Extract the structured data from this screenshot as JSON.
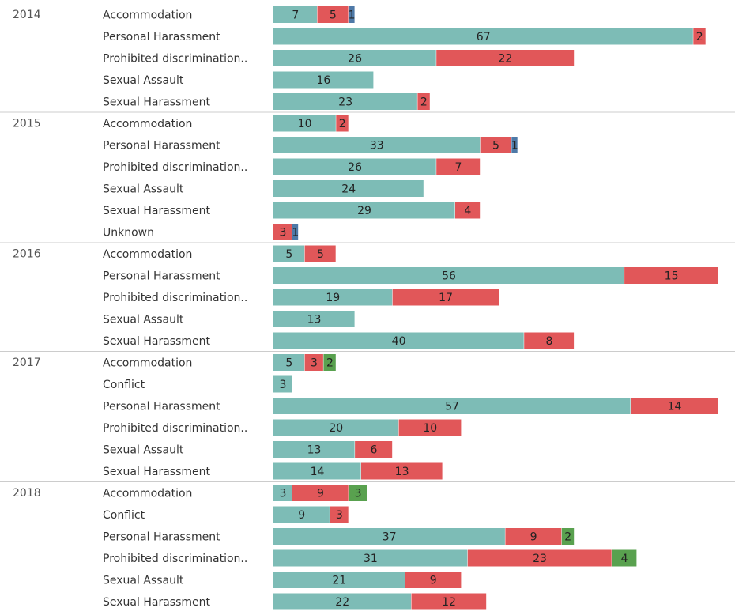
{
  "colors": {
    "teal": "#7dbcb6",
    "red": "#e15759",
    "blue": "#4e79a7",
    "green": "#59a14f",
    "divider": "#cccccc",
    "axis": "#bbbbbb"
  },
  "chart_data": {
    "type": "bar",
    "orientation": "horizontal",
    "stacked": true,
    "grid": false,
    "legend": "none",
    "xlim": [
      0,
      73
    ],
    "series_colors": [
      "teal",
      "red",
      "blue",
      "green"
    ],
    "groups": [
      {
        "year": "2014",
        "rows": [
          {
            "category": "Accommodation",
            "segments": [
              {
                "value": 7,
                "color": "teal"
              },
              {
                "value": 5,
                "color": "red"
              },
              {
                "value": 1,
                "color": "blue"
              }
            ]
          },
          {
            "category": "Personal Harassment",
            "segments": [
              {
                "value": 67,
                "color": "teal"
              },
              {
                "value": 2,
                "color": "red"
              }
            ]
          },
          {
            "category": "Prohibited discrimination..",
            "segments": [
              {
                "value": 26,
                "color": "teal"
              },
              {
                "value": 22,
                "color": "red"
              }
            ]
          },
          {
            "category": "Sexual Assault",
            "segments": [
              {
                "value": 16,
                "color": "teal"
              }
            ]
          },
          {
            "category": "Sexual Harassment",
            "segments": [
              {
                "value": 23,
                "color": "teal"
              },
              {
                "value": 2,
                "color": "red"
              }
            ]
          }
        ]
      },
      {
        "year": "2015",
        "rows": [
          {
            "category": "Accommodation",
            "segments": [
              {
                "value": 10,
                "color": "teal"
              },
              {
                "value": 2,
                "color": "red"
              }
            ]
          },
          {
            "category": "Personal Harassment",
            "segments": [
              {
                "value": 33,
                "color": "teal"
              },
              {
                "value": 5,
                "color": "red"
              },
              {
                "value": 1,
                "color": "blue"
              }
            ]
          },
          {
            "category": "Prohibited discrimination..",
            "segments": [
              {
                "value": 26,
                "color": "teal"
              },
              {
                "value": 7,
                "color": "red"
              }
            ]
          },
          {
            "category": "Sexual Assault",
            "segments": [
              {
                "value": 24,
                "color": "teal"
              }
            ]
          },
          {
            "category": "Sexual Harassment",
            "segments": [
              {
                "value": 29,
                "color": "teal"
              },
              {
                "value": 4,
                "color": "red"
              }
            ]
          },
          {
            "category": "Unknown",
            "segments": [
              {
                "value": 3,
                "color": "red"
              },
              {
                "value": 1,
                "color": "blue"
              }
            ]
          }
        ]
      },
      {
        "year": "2016",
        "rows": [
          {
            "category": "Accommodation",
            "segments": [
              {
                "value": 5,
                "color": "teal"
              },
              {
                "value": 5,
                "color": "red"
              }
            ]
          },
          {
            "category": "Personal Harassment",
            "segments": [
              {
                "value": 56,
                "color": "teal"
              },
              {
                "value": 15,
                "color": "red"
              }
            ]
          },
          {
            "category": "Prohibited discrimination..",
            "segments": [
              {
                "value": 19,
                "color": "teal"
              },
              {
                "value": 17,
                "color": "red"
              }
            ]
          },
          {
            "category": "Sexual Assault",
            "segments": [
              {
                "value": 13,
                "color": "teal"
              }
            ]
          },
          {
            "category": "Sexual Harassment",
            "segments": [
              {
                "value": 40,
                "color": "teal"
              },
              {
                "value": 8,
                "color": "red"
              }
            ]
          }
        ]
      },
      {
        "year": "2017",
        "rows": [
          {
            "category": "Accommodation",
            "segments": [
              {
                "value": 5,
                "color": "teal"
              },
              {
                "value": 3,
                "color": "red"
              },
              {
                "value": 2,
                "color": "green"
              }
            ]
          },
          {
            "category": "Conflict",
            "segments": [
              {
                "value": 3,
                "color": "teal"
              }
            ]
          },
          {
            "category": "Personal Harassment",
            "segments": [
              {
                "value": 57,
                "color": "teal"
              },
              {
                "value": 14,
                "color": "red"
              }
            ]
          },
          {
            "category": "Prohibited discrimination..",
            "segments": [
              {
                "value": 20,
                "color": "teal"
              },
              {
                "value": 10,
                "color": "red"
              }
            ]
          },
          {
            "category": "Sexual Assault",
            "segments": [
              {
                "value": 13,
                "color": "teal"
              },
              {
                "value": 6,
                "color": "red"
              }
            ]
          },
          {
            "category": "Sexual Harassment",
            "segments": [
              {
                "value": 14,
                "color": "teal"
              },
              {
                "value": 13,
                "color": "red"
              }
            ]
          }
        ]
      },
      {
        "year": "2018",
        "rows": [
          {
            "category": "Accommodation",
            "segments": [
              {
                "value": 3,
                "color": "teal"
              },
              {
                "value": 9,
                "color": "red"
              },
              {
                "value": 3,
                "color": "green"
              }
            ]
          },
          {
            "category": "Conflict",
            "segments": [
              {
                "value": 9,
                "color": "teal"
              },
              {
                "value": 3,
                "color": "red"
              }
            ]
          },
          {
            "category": "Personal Harassment",
            "segments": [
              {
                "value": 37,
                "color": "teal"
              },
              {
                "value": 9,
                "color": "red"
              },
              {
                "value": 2,
                "color": "green"
              }
            ]
          },
          {
            "category": "Prohibited discrimination..",
            "segments": [
              {
                "value": 31,
                "color": "teal"
              },
              {
                "value": 23,
                "color": "red"
              },
              {
                "value": 4,
                "color": "green"
              }
            ]
          },
          {
            "category": "Sexual Assault",
            "segments": [
              {
                "value": 21,
                "color": "teal"
              },
              {
                "value": 9,
                "color": "red"
              }
            ]
          },
          {
            "category": "Sexual Harassment",
            "segments": [
              {
                "value": 22,
                "color": "teal"
              },
              {
                "value": 12,
                "color": "red"
              }
            ]
          }
        ]
      }
    ]
  }
}
